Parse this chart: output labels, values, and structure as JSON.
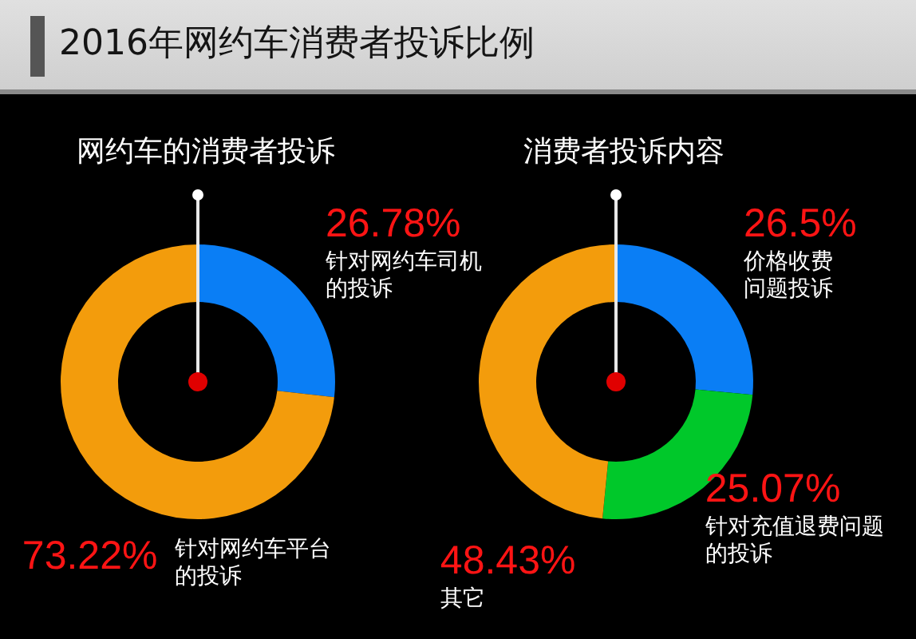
{
  "chart_data": [
    {
      "type": "donut",
      "title": "2016年网约车消费者投诉比例",
      "subtitle": "网约车的消费者投诉",
      "categories": [
        "针对网约车司机的投诉",
        "针对网约车平台的投诉"
      ],
      "values": [
        26.78,
        73.22
      ],
      "colors": [
        "#0a7ef5",
        "#f39c0c"
      ],
      "value_labels": [
        "26.78%",
        "73.22%"
      ]
    },
    {
      "type": "donut",
      "title": "消费者投诉内容",
      "categories": [
        "价格收费问题投诉",
        "针对充值退费问题的投诉",
        "其它"
      ],
      "values": [
        26.5,
        25.07,
        48.43
      ],
      "colors": [
        "#0a7ef5",
        "#00c82a",
        "#f39c0c"
      ],
      "value_labels": [
        "26.5%",
        "25.07%",
        "48.43%"
      ]
    }
  ]
}
